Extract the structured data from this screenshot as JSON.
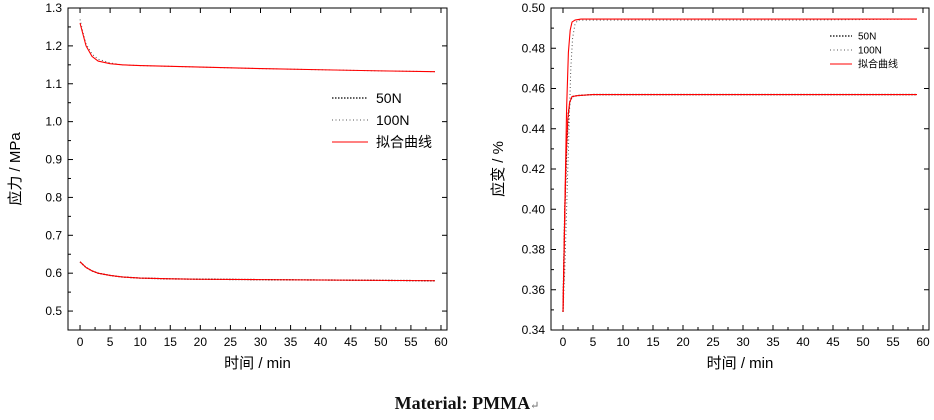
{
  "chart_data": [
    {
      "type": "line",
      "title": "",
      "xlabel": "时间 / min",
      "ylabel": "应力 / MPa",
      "xlim": [
        -2,
        61
      ],
      "ylim": [
        0.45,
        1.3
      ],
      "xticks": [
        0,
        5,
        10,
        15,
        20,
        25,
        30,
        35,
        40,
        45,
        50,
        55,
        60
      ],
      "yticks": [
        0.5,
        0.6,
        0.7,
        0.8,
        0.9,
        1.0,
        1.1,
        1.2,
        1.3
      ],
      "ytick_labels": [
        "0.5",
        "0.6",
        "0.7",
        "0.8",
        "0.9",
        "1.0",
        "1.1",
        "1.2",
        "1.3"
      ],
      "legend_position": "center-right",
      "legend": [
        "50N",
        "100N",
        "拟合曲线"
      ],
      "series": [
        {
          "name": "50N",
          "style": "dense-dotted",
          "color": "#000000",
          "x": [
            0,
            1,
            2,
            3,
            5,
            7,
            10,
            15,
            20,
            30,
            40,
            50,
            59
          ],
          "y": [
            0.63,
            0.615,
            0.606,
            0.6,
            0.594,
            0.59,
            0.587,
            0.585,
            0.584,
            0.583,
            0.582,
            0.581,
            0.58
          ]
        },
        {
          "name": "100N",
          "style": "sparse-dotted",
          "color": "#555555",
          "x": [
            0,
            0.5,
            1,
            2,
            3,
            5,
            7,
            10,
            15,
            20,
            30,
            40,
            50,
            59
          ],
          "y": [
            1.27,
            1.235,
            1.205,
            1.178,
            1.165,
            1.155,
            1.15,
            1.148,
            1.146,
            1.144,
            1.14,
            1.137,
            1.134,
            1.132
          ]
        },
        {
          "name": "拟合曲线",
          "style": "solid",
          "color": "#ff0000",
          "x": [
            0,
            1,
            2,
            3,
            5,
            7,
            10,
            15,
            20,
            30,
            40,
            50,
            59
          ],
          "y": [
            0.63,
            0.615,
            0.606,
            0.6,
            0.594,
            0.59,
            0.587,
            0.585,
            0.584,
            0.583,
            0.582,
            0.581,
            0.58
          ]
        },
        {
          "name": "拟合曲线",
          "style": "solid",
          "color": "#ff0000",
          "x": [
            0,
            0.5,
            1,
            2,
            3,
            5,
            7,
            10,
            15,
            20,
            30,
            40,
            50,
            59
          ],
          "y": [
            1.26,
            1.23,
            1.2,
            1.172,
            1.16,
            1.153,
            1.15,
            1.148,
            1.146,
            1.144,
            1.14,
            1.137,
            1.134,
            1.132
          ]
        }
      ]
    },
    {
      "type": "line",
      "title": "",
      "xlabel": "时间 / min",
      "ylabel": "应变 / %",
      "xlim": [
        -2,
        61
      ],
      "ylim": [
        0.34,
        0.5
      ],
      "xticks": [
        0,
        5,
        10,
        15,
        20,
        25,
        30,
        35,
        40,
        45,
        50,
        55,
        60
      ],
      "yticks": [
        0.34,
        0.36,
        0.38,
        0.4,
        0.42,
        0.44,
        0.46,
        0.48,
        0.5
      ],
      "ytick_labels": [
        "0.34",
        "0.36",
        "0.38",
        "0.40",
        "0.42",
        "0.44",
        "0.46",
        "0.48",
        "0.50"
      ],
      "legend_position": "top-right",
      "legend": [
        "50N",
        "100N",
        "拟合曲线"
      ],
      "series": [
        {
          "name": "50N",
          "style": "dense-dotted",
          "color": "#000000",
          "x": [
            0,
            0.3,
            0.6,
            0.9,
            1.2,
            1.6,
            2.5,
            5,
            20,
            40,
            59
          ],
          "y": [
            0.349,
            0.4,
            0.43,
            0.448,
            0.454,
            0.456,
            0.4565,
            0.457,
            0.457,
            0.457,
            0.457
          ]
        },
        {
          "name": "100N",
          "style": "sparse-dotted",
          "color": "#555555",
          "x": [
            0,
            0.3,
            0.6,
            1.0,
            1.3,
            1.6,
            2.0,
            2.5,
            5,
            20,
            40,
            59
          ],
          "y": [
            0.349,
            0.37,
            0.4,
            0.44,
            0.47,
            0.485,
            0.492,
            0.494,
            0.494,
            0.494,
            0.494,
            0.4945
          ]
        },
        {
          "name": "拟合曲线",
          "style": "solid",
          "color": "#ff0000",
          "x": [
            0,
            0.25,
            0.5,
            0.8,
            1.1,
            1.5,
            2.5,
            5,
            20,
            40,
            59
          ],
          "y": [
            0.349,
            0.39,
            0.425,
            0.445,
            0.453,
            0.456,
            0.4565,
            0.457,
            0.457,
            0.457,
            0.457
          ]
        },
        {
          "name": "拟合曲线",
          "style": "solid",
          "color": "#ff0000",
          "x": [
            0,
            0.3,
            0.6,
            0.9,
            1.2,
            1.5,
            2.0,
            3,
            5,
            20,
            40,
            59
          ],
          "y": [
            0.349,
            0.4,
            0.45,
            0.478,
            0.489,
            0.493,
            0.494,
            0.4945,
            0.4945,
            0.4945,
            0.4945,
            0.4945
          ]
        }
      ]
    }
  ],
  "caption": {
    "label": "Material:",
    "material": "PMMA",
    "mark": "↵"
  }
}
